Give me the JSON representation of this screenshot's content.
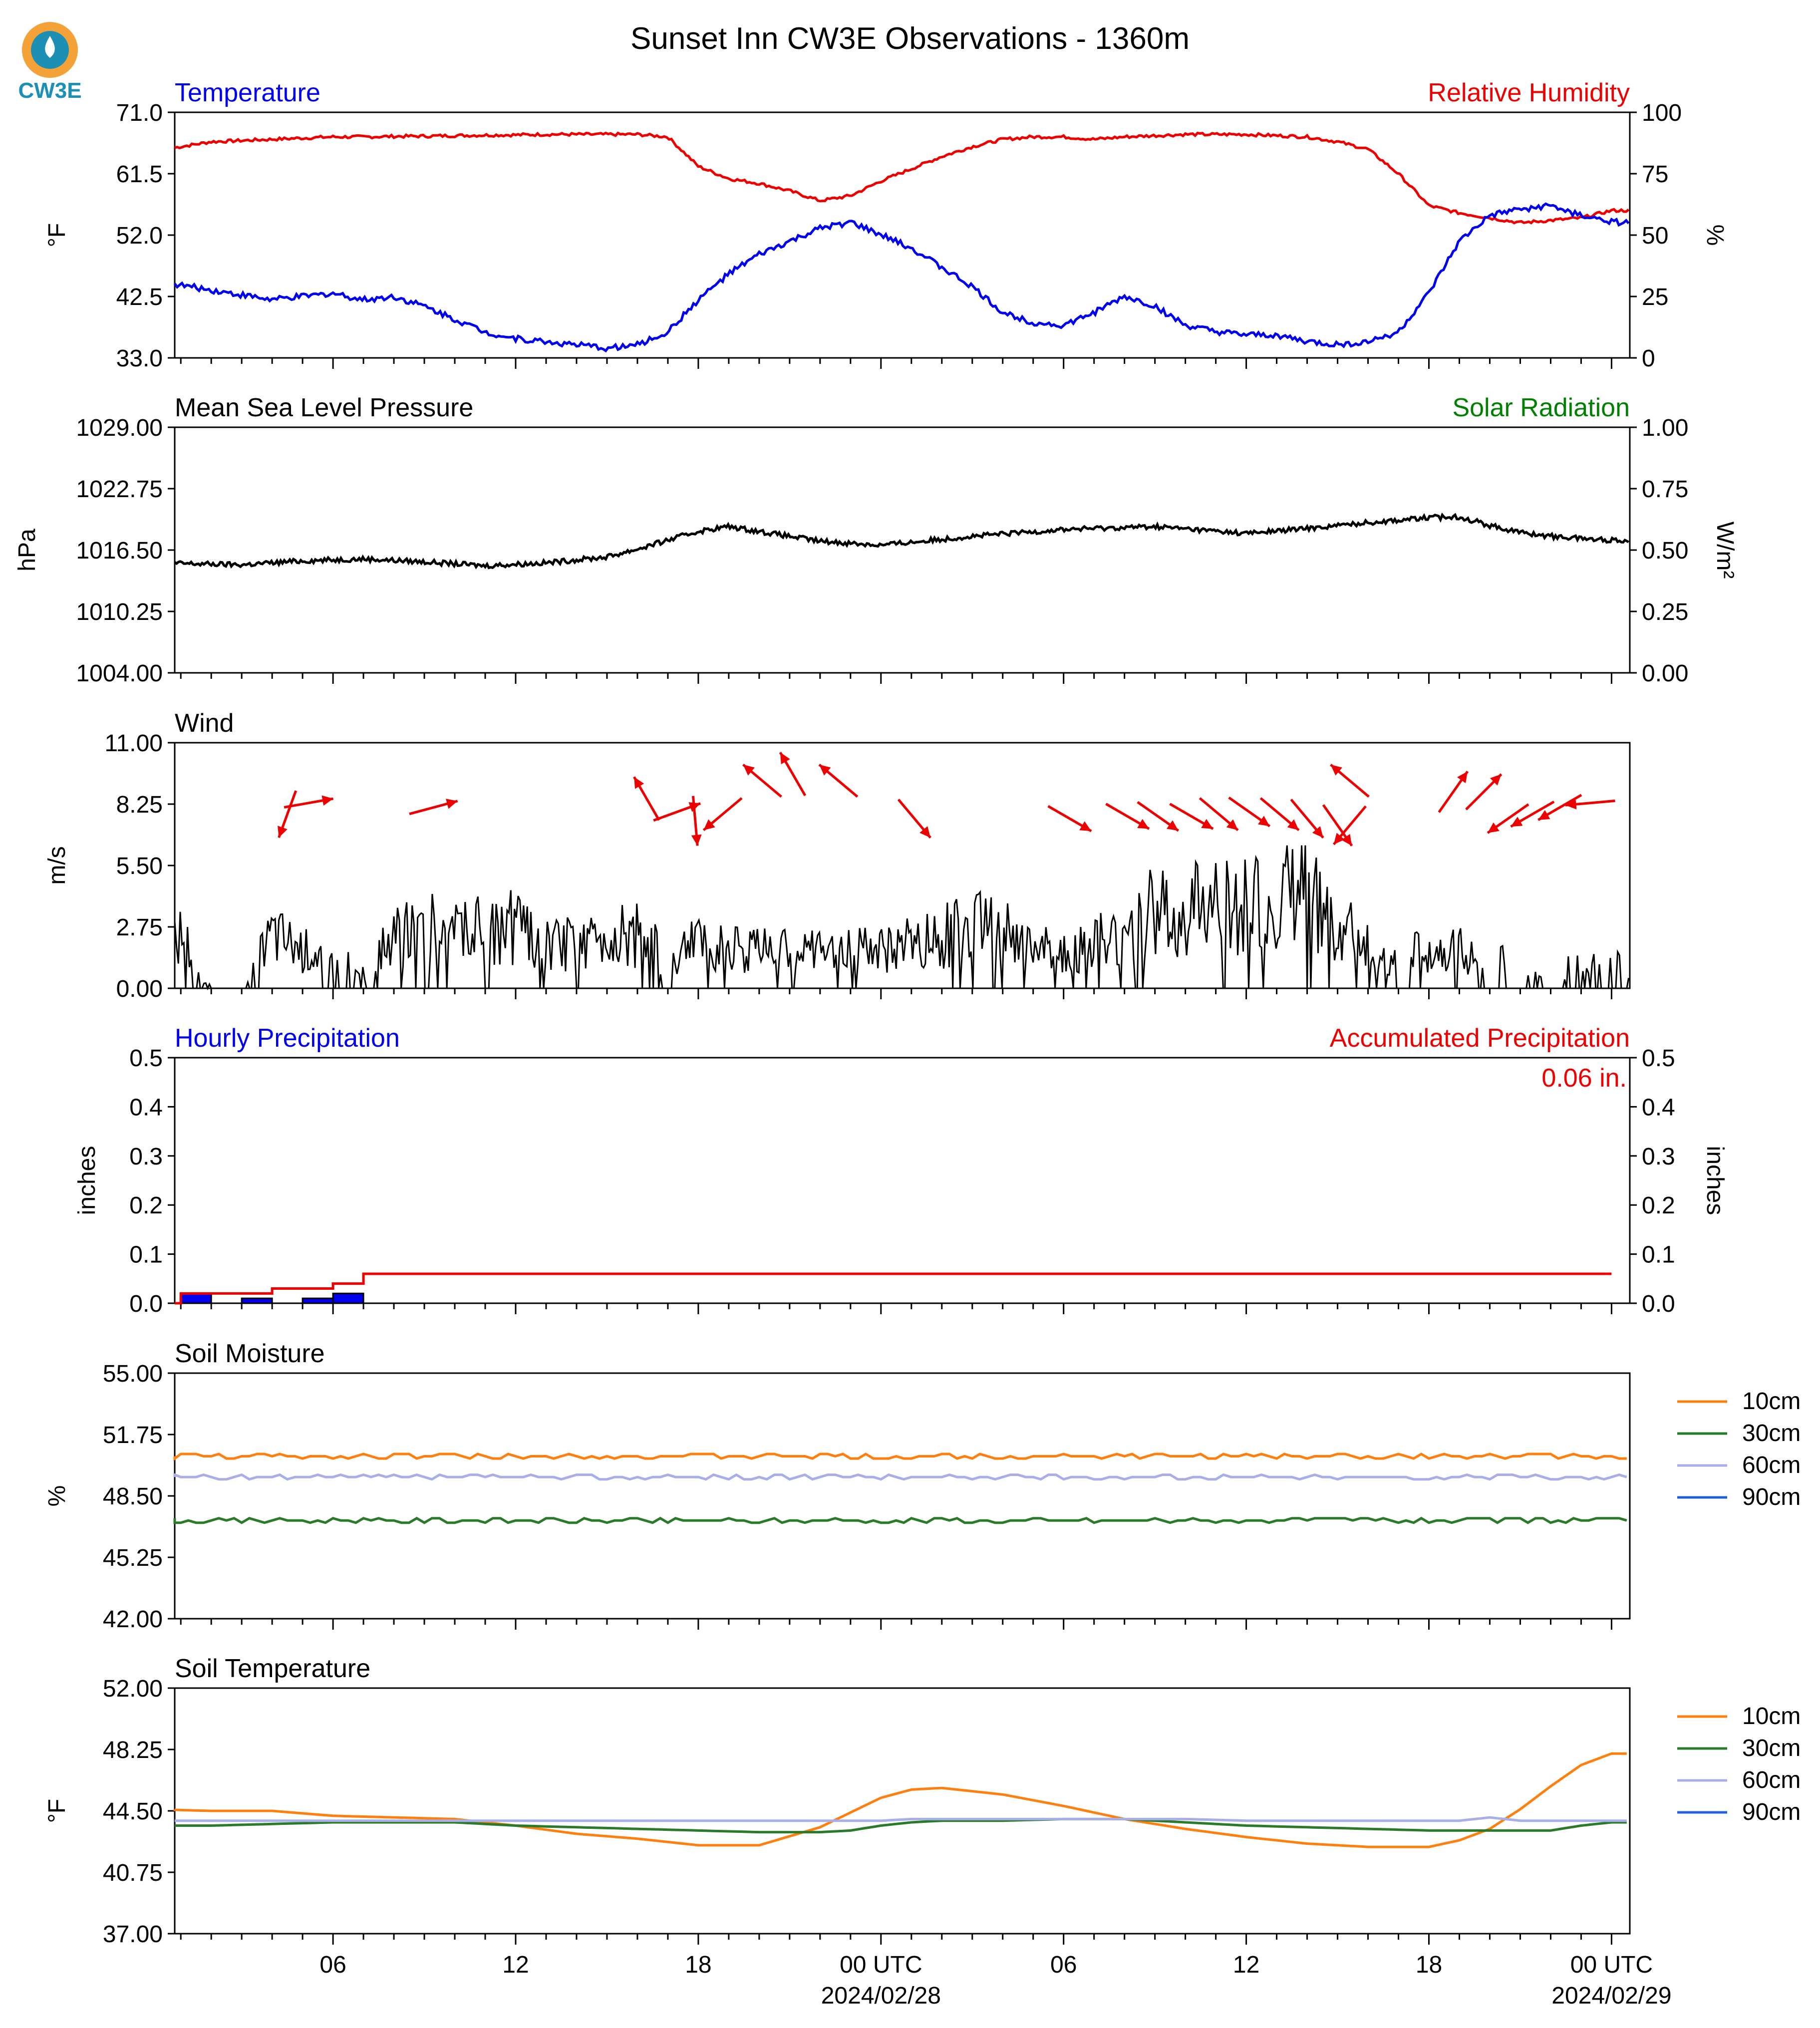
{
  "title": "Sunset Inn CW3E Observations - 1360m",
  "logo_text": "CW3E",
  "colors": {
    "blue": "#0000ee",
    "red": "#ee0000",
    "green": "#008000",
    "black": "#000000",
    "orange": "#ff7f0e",
    "darkgreen": "#2a7a2a",
    "lavender": "#a7aee8",
    "midblue": "#1f5fe0"
  },
  "x_axis": {
    "tick_labels": [
      "06",
      "12",
      "18",
      "00 UTC",
      "06",
      "12",
      "18",
      "00 UTC"
    ],
    "date_labels": [
      "2024/02/28",
      "2024/02/29"
    ]
  },
  "chart_data": [
    {
      "id": "temp_rh",
      "type": "line",
      "left_title": "Temperature",
      "right_title": "Relative Humidity",
      "left_ylabel": "°F",
      "right_ylabel": "%",
      "left_ylim": [
        33.0,
        71.0
      ],
      "right_ylim": [
        0,
        100
      ],
      "left_ticks": [
        "33.0",
        "42.5",
        "52.0",
        "61.5",
        "71.0"
      ],
      "right_ticks": [
        "0",
        "25",
        "50",
        "75",
        "100"
      ],
      "x_hours": [
        0,
        2,
        4,
        5,
        6,
        7,
        8,
        9,
        10,
        11,
        12,
        13,
        14,
        15,
        16,
        17,
        18,
        19,
        20,
        21,
        22,
        23,
        24,
        25,
        26,
        27,
        28,
        29,
        30,
        31,
        32,
        33,
        34,
        35,
        36,
        37,
        38,
        39,
        40,
        41,
        42,
        43,
        44,
        45,
        46,
        47,
        48
      ],
      "series": [
        {
          "name": "Temperature",
          "axis": "left",
          "values": [
            45,
            43.5,
            42,
            42.5,
            43,
            42,
            42.5,
            41,
            39,
            37,
            36,
            35.5,
            35,
            34.5,
            35,
            37,
            42,
            46,
            49,
            51,
            53,
            54,
            52,
            50,
            47,
            44,
            40,
            38.5,
            38,
            40,
            42.5,
            41,
            38,
            37,
            36.5,
            36.5,
            35.5,
            35,
            35.5,
            37,
            43,
            51,
            55,
            56,
            56.5,
            55,
            54
          ]
        },
        {
          "name": "Relative Humidity",
          "axis": "right",
          "values": [
            84,
            88,
            89,
            89.5,
            90,
            90,
            90.2,
            90.3,
            90.5,
            90.7,
            90.8,
            91,
            91,
            91,
            91,
            90,
            78,
            73,
            71,
            68,
            64,
            66,
            72,
            77,
            82,
            86,
            89,
            90,
            90,
            89,
            90,
            90.5,
            91,
            91,
            91,
            90.5,
            90,
            88,
            85,
            75,
            62,
            59,
            57,
            55,
            56,
            57,
            60
          ]
        }
      ]
    },
    {
      "id": "pressure",
      "type": "line",
      "left_title": "Mean Sea Level Pressure",
      "right_title": "Solar Radiation",
      "left_ylabel": "hPa",
      "right_ylabel": "W/m²",
      "left_ylim": [
        1004.0,
        1029.0
      ],
      "right_ylim": [
        0,
        1
      ],
      "left_ticks": [
        "1004.00",
        "1010.25",
        "1016.50",
        "1022.75",
        "1029.00"
      ],
      "right_ticks": [
        "0.00",
        "0.25",
        "0.50",
        "0.75",
        "1.00"
      ],
      "x_hours": [
        0,
        3,
        5,
        7,
        9,
        11,
        13,
        15,
        16,
        17,
        18,
        19,
        21,
        22,
        23,
        24,
        27,
        30,
        33,
        36,
        38,
        40,
        42,
        43,
        44,
        45,
        46,
        48
      ],
      "series": [
        {
          "name": "Mean Sea Level Pressure",
          "axis": "left",
          "values": [
            1015.2,
            1015.0,
            1015.4,
            1015.6,
            1015.3,
            1014.9,
            1015.2,
            1015.8,
            1016.6,
            1017.5,
            1018.4,
            1018.9,
            1017.9,
            1017.4,
            1017.2,
            1017.0,
            1017.9,
            1018.6,
            1018.9,
            1018.2,
            1018.7,
            1019.3,
            1019.8,
            1019.9,
            1019.0,
            1018.3,
            1017.9,
            1017.5
          ]
        }
      ]
    },
    {
      "id": "wind",
      "type": "line",
      "left_title": "Wind",
      "left_ylabel": "m/s",
      "left_ylim": [
        0.0,
        11.0
      ],
      "left_ticks": [
        "0.00",
        "2.75",
        "5.50",
        "8.25",
        "11.00"
      ],
      "x_hours": [
        0,
        1,
        2,
        3,
        4,
        5,
        6,
        7,
        8,
        9,
        10,
        11,
        12,
        13,
        14,
        15,
        16,
        17,
        18,
        19,
        20,
        21,
        22,
        23,
        24,
        25,
        26,
        27,
        28,
        29,
        30,
        31,
        32,
        33,
        34,
        35,
        36,
        37,
        38,
        39,
        40,
        41,
        42,
        43,
        44,
        45,
        46,
        47,
        48
      ],
      "series": [
        {
          "name": "Wind speed",
          "axis": "left",
          "values": [
            0,
            3.5,
            0,
            0,
            3.5,
            2.5,
            2,
            1,
            3.5,
            4,
            3.5,
            4,
            4,
            3,
            3,
            3.5,
            3.5,
            2,
            3,
            2.5,
            2.5,
            2.5,
            2.5,
            2.5,
            2.5,
            3,
            3.5,
            4,
            4,
            2.5,
            2.5,
            3,
            4,
            5,
            5,
            5.5,
            5.5,
            5.8,
            6,
            4,
            3,
            2,
            2.5,
            2.5,
            2,
            2,
            1.5,
            1.5,
            1.5
          ]
        }
      ],
      "wind_arrows": [
        {
          "hour": 4.5,
          "speed": 7.8,
          "to_deg": 200
        },
        {
          "hour": 5.2,
          "speed": 8.3,
          "to_deg": 80
        },
        {
          "hour": 9.3,
          "speed": 8.1,
          "to_deg": 75
        },
        {
          "hour": 16.3,
          "speed": 8.5,
          "to_deg": 330
        },
        {
          "hour": 17.3,
          "speed": 7.9,
          "to_deg": 70
        },
        {
          "hour": 17.9,
          "speed": 7.5,
          "to_deg": 175
        },
        {
          "hour": 18.8,
          "speed": 7.8,
          "to_deg": 230
        },
        {
          "hour": 20.1,
          "speed": 9.3,
          "to_deg": 310
        },
        {
          "hour": 21.1,
          "speed": 9.6,
          "to_deg": 330
        },
        {
          "hour": 22.6,
          "speed": 9.3,
          "to_deg": 310
        },
        {
          "hour": 25.1,
          "speed": 7.6,
          "to_deg": 140
        },
        {
          "hour": 30.2,
          "speed": 7.6,
          "to_deg": 120
        },
        {
          "hour": 32.1,
          "speed": 7.7,
          "to_deg": 120
        },
        {
          "hour": 33.1,
          "speed": 7.7,
          "to_deg": 125
        },
        {
          "hour": 34.2,
          "speed": 7.7,
          "to_deg": 120
        },
        {
          "hour": 35.1,
          "speed": 7.8,
          "to_deg": 130
        },
        {
          "hour": 36.1,
          "speed": 7.9,
          "to_deg": 125
        },
        {
          "hour": 37.1,
          "speed": 7.8,
          "to_deg": 130
        },
        {
          "hour": 38.0,
          "speed": 7.6,
          "to_deg": 140
        },
        {
          "hour": 39.4,
          "speed": 9.3,
          "to_deg": 310
        },
        {
          "hour": 39.0,
          "speed": 7.3,
          "to_deg": 145
        },
        {
          "hour": 39.4,
          "speed": 7.3,
          "to_deg": 220
        },
        {
          "hour": 42.8,
          "speed": 8.8,
          "to_deg": 35
        },
        {
          "hour": 43.8,
          "speed": 8.8,
          "to_deg": 45
        },
        {
          "hour": 44.6,
          "speed": 7.6,
          "to_deg": 235
        },
        {
          "hour": 45.4,
          "speed": 7.8,
          "to_deg": 240
        },
        {
          "hour": 46.3,
          "speed": 8.1,
          "to_deg": 240
        },
        {
          "hour": 47.3,
          "speed": 8.3,
          "to_deg": 265
        }
      ]
    },
    {
      "id": "precip",
      "type": "bar",
      "left_title": "Hourly Precipitation",
      "right_title": "Accumulated Precipitation",
      "left_ylabel": "inches",
      "right_ylabel": "inches",
      "left_ylim": [
        0.0,
        0.5
      ],
      "right_ylim": [
        0.0,
        0.5
      ],
      "left_ticks": [
        "0.0",
        "0.1",
        "0.2",
        "0.3",
        "0.4",
        "0.5"
      ],
      "right_ticks": [
        "0.0",
        "0.1",
        "0.2",
        "0.3",
        "0.4",
        "0.5"
      ],
      "accumulated_label": "0.06 in.",
      "bars": [
        {
          "hour": 1.5,
          "value": 0.02
        },
        {
          "hour": 3.5,
          "value": 0.01
        },
        {
          "hour": 5.5,
          "value": 0.01
        },
        {
          "hour": 6.5,
          "value": 0.02
        }
      ],
      "accumulated": {
        "x_hours": [
          0,
          1,
          2,
          3,
          4,
          5,
          6,
          6.5,
          7,
          48
        ],
        "values": [
          0.0,
          0.02,
          0.02,
          0.02,
          0.03,
          0.03,
          0.04,
          0.04,
          0.06,
          0.06
        ]
      }
    },
    {
      "id": "soil_moisture",
      "type": "line",
      "left_title": "Soil Moisture",
      "left_ylabel": "%",
      "left_ylim": [
        42.0,
        55.0
      ],
      "left_ticks": [
        "42.00",
        "45.25",
        "48.50",
        "51.75",
        "55.00"
      ],
      "x_hours": [
        0,
        48
      ],
      "series": [
        {
          "name": "10cm",
          "color": "#ff7f0e",
          "values": [
            50.6,
            50.6
          ]
        },
        {
          "name": "30cm",
          "color": "#2a7a2a",
          "values": [
            47.2,
            47.2
          ]
        },
        {
          "name": "60cm",
          "color": "#a7aee8",
          "values": [
            49.5,
            49.5
          ]
        },
        {
          "name": "90cm",
          "color": "#1f5fe0",
          "values": []
        }
      ]
    },
    {
      "id": "soil_temp",
      "type": "line",
      "left_title": "Soil Temperature",
      "left_ylabel": "°F",
      "left_ylim": [
        37.0,
        52.0
      ],
      "left_ticks": [
        "37.00",
        "40.75",
        "44.50",
        "48.25",
        "52.00"
      ],
      "x_hours": [
        0,
        2,
        4,
        6,
        8,
        10,
        12,
        14,
        16,
        18,
        20,
        22,
        23,
        24,
        25,
        26,
        28,
        30,
        32,
        34,
        36,
        38,
        40,
        42,
        43,
        44,
        45,
        46,
        47,
        48
      ],
      "series": [
        {
          "name": "10cm",
          "color": "#ff7f0e",
          "values": [
            44.6,
            44.5,
            44.5,
            44.2,
            44.1,
            44.0,
            43.6,
            43.1,
            42.8,
            42.4,
            42.4,
            43.5,
            44.4,
            45.3,
            45.8,
            45.9,
            45.5,
            44.8,
            44.0,
            43.4,
            42.9,
            42.5,
            42.3,
            42.3,
            42.7,
            43.4,
            44.6,
            46.0,
            47.3,
            48.0
          ]
        },
        {
          "name": "30cm",
          "color": "#2a7a2a",
          "values": [
            43.6,
            43.6,
            43.7,
            43.8,
            43.8,
            43.8,
            43.6,
            43.5,
            43.4,
            43.3,
            43.2,
            43.2,
            43.3,
            43.6,
            43.8,
            43.9,
            43.9,
            44.0,
            44.0,
            43.8,
            43.6,
            43.5,
            43.4,
            43.3,
            43.3,
            43.3,
            43.3,
            43.3,
            43.6,
            43.8
          ]
        },
        {
          "name": "60cm",
          "color": "#a7aee8",
          "values": [
            43.9,
            43.9,
            43.9,
            43.9,
            43.9,
            43.9,
            43.9,
            43.9,
            43.9,
            43.9,
            43.9,
            43.9,
            43.9,
            43.9,
            44.0,
            44.0,
            44.0,
            44.0,
            44.0,
            44.0,
            43.9,
            43.9,
            43.9,
            43.9,
            43.9,
            44.1,
            43.9,
            43.9,
            43.9,
            43.9
          ]
        },
        {
          "name": "90cm",
          "color": "#1f5fe0",
          "values": []
        }
      ]
    }
  ]
}
